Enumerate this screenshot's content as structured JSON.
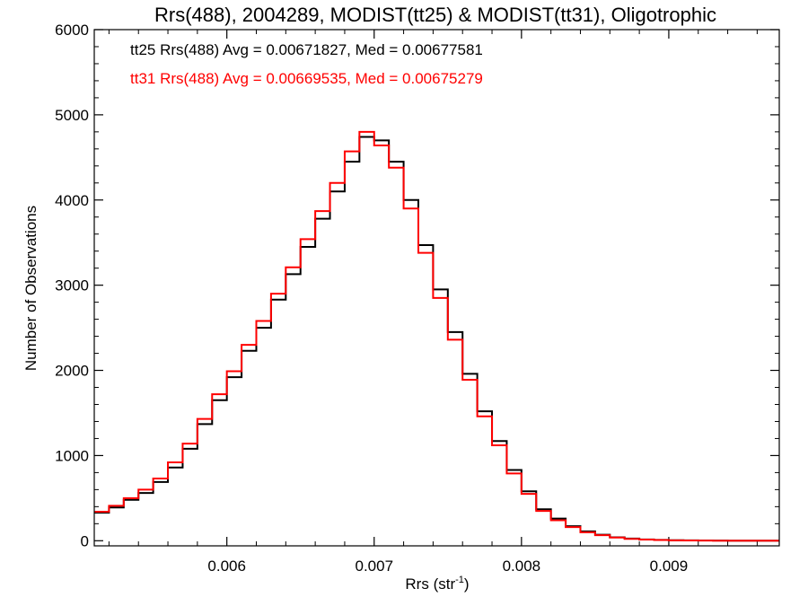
{
  "chart_data": {
    "type": "line",
    "title": "Rrs(488), 2004289, MODIST(tt25) & MODIST(tt31), Oligotrophic",
    "xlabel_main": "Rrs (str",
    "xlabel_sup": "-1",
    "xlabel_close": ")",
    "ylabel": "Number of Observations",
    "xlim": [
      0.0051,
      0.00975
    ],
    "ylim": [
      -60,
      6000
    ],
    "xticks": [
      0.006,
      0.007,
      0.008,
      0.009
    ],
    "xtick_labels": [
      "0.006",
      "0.007",
      "0.008",
      "0.009"
    ],
    "yticks": [
      0,
      1000,
      2000,
      3000,
      4000,
      5000,
      6000
    ],
    "ytick_labels": [
      "0",
      "1000",
      "2000",
      "3000",
      "4000",
      "5000",
      "6000"
    ],
    "annotations": [
      {
        "text": "tt25 Rrs(488) Avg = 0.00671827, Med = 0.00677581",
        "color": "#000000"
      },
      {
        "text": "tt31 Rrs(488) Avg = 0.00669535, Med = 0.00675279",
        "color": "#ff0000"
      }
    ],
    "series": [
      {
        "color": "#000000",
        "x": [
          0.0051,
          0.0052,
          0.0053,
          0.0054,
          0.0055,
          0.0056,
          0.0057,
          0.0058,
          0.0059,
          0.006,
          0.0061,
          0.0062,
          0.0063,
          0.0064,
          0.0065,
          0.0066,
          0.0067,
          0.0068,
          0.0069,
          0.007,
          0.0071,
          0.0072,
          0.0073,
          0.0074,
          0.0075,
          0.0076,
          0.0077,
          0.0078,
          0.0079,
          0.008,
          0.0081,
          0.0082,
          0.0083,
          0.0084,
          0.0085,
          0.0086,
          0.0087,
          0.0088,
          0.0089,
          0.009,
          0.0091,
          0.0092,
          0.0093,
          0.0094,
          0.0095,
          0.0096,
          0.0097
        ],
        "y": [
          330,
          390,
          480,
          560,
          690,
          860,
          1080,
          1370,
          1650,
          1920,
          2230,
          2500,
          2830,
          3130,
          3450,
          3780,
          4100,
          4450,
          4740,
          4700,
          4450,
          4000,
          3470,
          2950,
          2450,
          1960,
          1520,
          1170,
          830,
          580,
          370,
          260,
          170,
          110,
          70,
          40,
          25,
          15,
          10,
          6,
          4,
          3,
          2,
          1,
          1,
          0,
          0
        ]
      },
      {
        "color": "#ff0000",
        "x": [
          0.0051,
          0.0052,
          0.0053,
          0.0054,
          0.0055,
          0.0056,
          0.0057,
          0.0058,
          0.0059,
          0.006,
          0.0061,
          0.0062,
          0.0063,
          0.0064,
          0.0065,
          0.0066,
          0.0067,
          0.0068,
          0.0069,
          0.007,
          0.0071,
          0.0072,
          0.0073,
          0.0074,
          0.0075,
          0.0076,
          0.0077,
          0.0078,
          0.0079,
          0.008,
          0.0081,
          0.0082,
          0.0083,
          0.0084,
          0.0085,
          0.0086,
          0.0087,
          0.0088,
          0.0089,
          0.009,
          0.0091,
          0.0092,
          0.0093,
          0.0094,
          0.0095,
          0.0096,
          0.0097
        ],
        "y": [
          340,
          410,
          500,
          600,
          730,
          920,
          1140,
          1430,
          1720,
          1990,
          2300,
          2580,
          2900,
          3210,
          3540,
          3870,
          4200,
          4570,
          4800,
          4640,
          4380,
          3900,
          3380,
          2850,
          2360,
          1890,
          1460,
          1120,
          790,
          550,
          350,
          240,
          160,
          100,
          65,
          38,
          22,
          14,
          9,
          5,
          3,
          2,
          1,
          1,
          0,
          0,
          0
        ]
      }
    ]
  }
}
